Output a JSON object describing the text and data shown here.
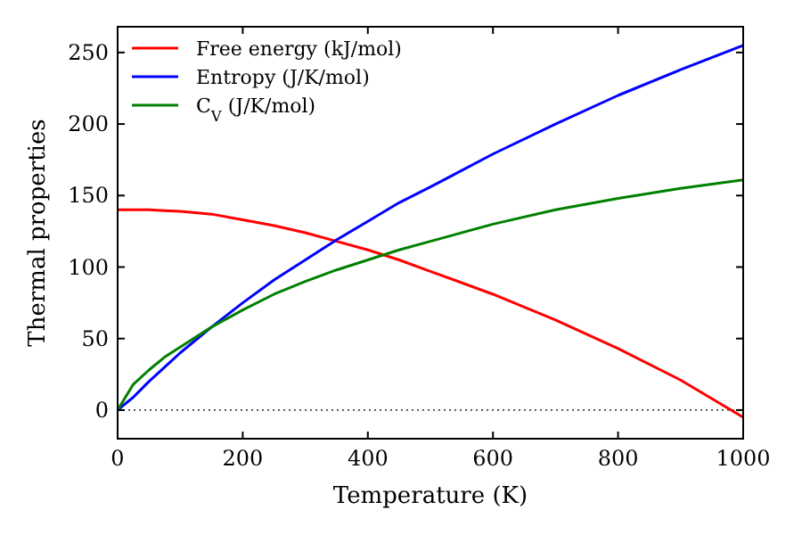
{
  "chart_data": {
    "type": "line",
    "xlabel": "Temperature (K)",
    "ylabel": "Thermal properties",
    "x": [
      0,
      25,
      50,
      75,
      100,
      150,
      200,
      250,
      300,
      350,
      400,
      450,
      500,
      600,
      700,
      800,
      900,
      1000
    ],
    "series": [
      {
        "name": "Free energy (kJ/mol)",
        "color": "#ff0000",
        "values": [
          140,
          140,
          140,
          139.5,
          139,
          137,
          133,
          129,
          124,
          118,
          112,
          105,
          97,
          81,
          63,
          43,
          21,
          -5
        ]
      },
      {
        "name": "Entropy (J/K/mol)",
        "color": "#0000ff",
        "values": [
          0,
          9,
          20,
          30,
          40,
          58,
          75,
          91,
          105,
          119,
          132,
          145,
          156,
          179,
          200,
          220,
          238,
          255
        ]
      },
      {
        "name": "C$_{V}$ (J/K/mol)",
        "color": "#008000",
        "values": [
          0,
          18,
          28,
          37,
          44,
          58,
          70,
          81,
          90,
          98,
          105,
          112,
          118,
          130,
          140,
          148,
          155,
          161
        ]
      }
    ],
    "xlim": [
      0,
      1000
    ],
    "xticks": [
      0,
      200,
      400,
      600,
      800,
      1000
    ],
    "ylim": [
      -20,
      268
    ],
    "yticks": [
      0,
      50,
      100,
      150,
      200,
      250
    ],
    "ref_lines": [
      {
        "axis": "y",
        "value": 0,
        "color": "#000000",
        "line_style": "dotted"
      }
    ],
    "legend": "top left",
    "marker": "none",
    "line_style": "solid",
    "grid": false
  }
}
